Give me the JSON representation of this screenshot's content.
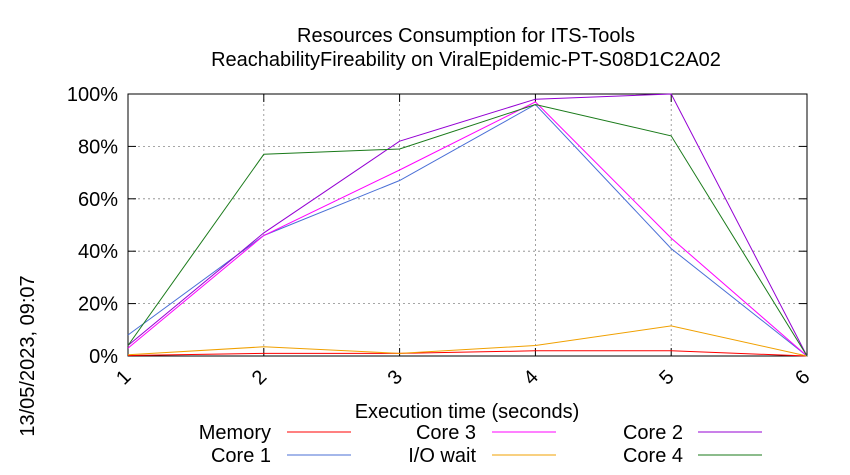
{
  "chart_data": {
    "type": "line",
    "title": "Resources Consumption for ITS-Tools",
    "subtitle": "ReachabilityFireability on ViralEpidemic-PT-S08D1C2A02",
    "xlabel": "Execution time (seconds)",
    "ylabel": "",
    "side_label": "13/05/2023, 09:07",
    "x": [
      1,
      2,
      3,
      4,
      5,
      6
    ],
    "x_ticks": [
      "1",
      "2",
      "3",
      "4",
      "5",
      "6"
    ],
    "xlim": [
      1,
      6
    ],
    "ylim": [
      0,
      100
    ],
    "y_ticks": [
      "0%",
      "20%",
      "40%",
      "60%",
      "80%",
      "100%"
    ],
    "grid": true,
    "legend_position": "bottom",
    "series": [
      {
        "name": "Memory",
        "color": "#ff0000",
        "values": [
          0.2,
          1,
          1,
          2,
          2,
          0
        ]
      },
      {
        "name": "Core 1",
        "color": "#4a6fd6",
        "values": [
          8,
          46,
          67,
          96,
          41,
          0
        ]
      },
      {
        "name": "Core 3",
        "color": "#ff00ff",
        "values": [
          3,
          46,
          71,
          97,
          45,
          0
        ]
      },
      {
        "name": "I/O wait",
        "color": "#f0a000",
        "values": [
          0.5,
          3.5,
          1,
          4,
          11.5,
          0
        ]
      },
      {
        "name": "Core 2",
        "color": "#9400d3",
        "values": [
          4,
          47,
          82,
          98,
          100,
          0
        ]
      },
      {
        "name": "Core 4",
        "color": "#1a7a1a",
        "values": [
          4,
          77,
          79,
          96,
          84,
          0
        ]
      }
    ]
  }
}
